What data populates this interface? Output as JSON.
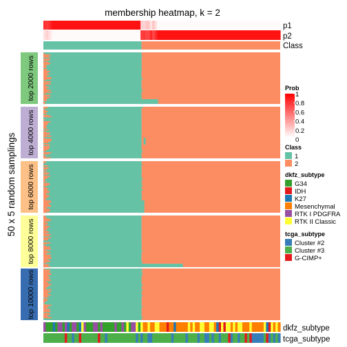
{
  "chart_data": {
    "type": "heatmap",
    "title": "membership heatmap, k = 2",
    "ylabel": "50 x 5 random samplings",
    "annotation_rows": [
      "p1",
      "p2",
      "Class"
    ],
    "bottom_annotation_rows": [
      "dkfz_subtype",
      "tcga_subtype"
    ],
    "row_groups": [
      {
        "label": "top 2000 rows",
        "color": "#7fc97f"
      },
      {
        "label": "top 4000 rows",
        "color": "#beaed4"
      },
      {
        "label": "top 6000 rows",
        "color": "#fdc086"
      },
      {
        "label": "top 8000 rows",
        "color": "#ffff99"
      },
      {
        "label": "top 10000 rows",
        "color": "#386cb0"
      }
    ],
    "classes": [
      {
        "name": "1",
        "color": "#66c2a5"
      },
      {
        "name": "2",
        "color": "#fc8d62"
      }
    ],
    "n_columns": 100,
    "class_boundary_column": 40,
    "prob_legend": {
      "title": "Prob",
      "ticks": [
        "1",
        "0.8",
        "0.6",
        "0.4",
        "0.2",
        "0"
      ]
    },
    "class_legend": {
      "title": "Class",
      "entries": [
        "1",
        "2"
      ]
    },
    "dkfz_legend": {
      "title": "dkfz_subtype",
      "entries": [
        {
          "label": "G34",
          "color": "#33a02c"
        },
        {
          "label": "IDH",
          "color": "#e31a1c"
        },
        {
          "label": "K27",
          "color": "#1f78b4"
        },
        {
          "label": "Mesenchymal",
          "color": "#ff7f00"
        },
        {
          "label": "RTK I PDGFRA",
          "color": "#984ea3"
        },
        {
          "label": "RTK II Classic",
          "color": "#ffff33"
        }
      ]
    },
    "tcga_legend": {
      "title": "tcga_subtype",
      "entries": [
        {
          "label": "Cluster #2",
          "color": "#377eb8"
        },
        {
          "label": "Cluster #3",
          "color": "#4daf4a"
        },
        {
          "label": "G-CIMP+",
          "color": "#e41a1c"
        }
      ]
    }
  }
}
